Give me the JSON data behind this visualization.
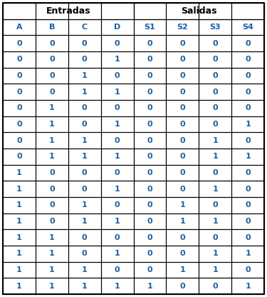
{
  "header_row1": [
    "Entradas",
    "Salidas"
  ],
  "header_row2": [
    "A",
    "B",
    "C",
    "D",
    "S1",
    "S2",
    "S3",
    "S4"
  ],
  "rows": [
    [
      0,
      0,
      0,
      0,
      0,
      0,
      0,
      0
    ],
    [
      0,
      0,
      0,
      1,
      0,
      0,
      0,
      0
    ],
    [
      0,
      0,
      1,
      0,
      0,
      0,
      0,
      0
    ],
    [
      0,
      0,
      1,
      1,
      0,
      0,
      0,
      0
    ],
    [
      0,
      1,
      0,
      0,
      0,
      0,
      0,
      0
    ],
    [
      0,
      1,
      0,
      1,
      0,
      0,
      0,
      1
    ],
    [
      0,
      1,
      1,
      0,
      0,
      0,
      1,
      0
    ],
    [
      0,
      1,
      1,
      1,
      0,
      0,
      1,
      1
    ],
    [
      1,
      0,
      0,
      0,
      0,
      0,
      0,
      0
    ],
    [
      1,
      0,
      0,
      1,
      0,
      0,
      1,
      0
    ],
    [
      1,
      0,
      1,
      0,
      0,
      1,
      0,
      0
    ],
    [
      1,
      0,
      1,
      1,
      0,
      1,
      1,
      0
    ],
    [
      1,
      1,
      0,
      0,
      0,
      0,
      0,
      0
    ],
    [
      1,
      1,
      0,
      1,
      0,
      0,
      1,
      1
    ],
    [
      1,
      1,
      1,
      0,
      0,
      1,
      1,
      0
    ],
    [
      1,
      1,
      1,
      1,
      1,
      0,
      0,
      1
    ]
  ],
  "cell_bg": "#ffffff",
  "line_color": "#000000",
  "data_text_color": "#1a5fa8",
  "header_text_color": "#1a5fa8",
  "top_header_text_color": "#000000",
  "font_size_top_header": 9,
  "font_size_col_header": 8,
  "font_size_data": 8
}
